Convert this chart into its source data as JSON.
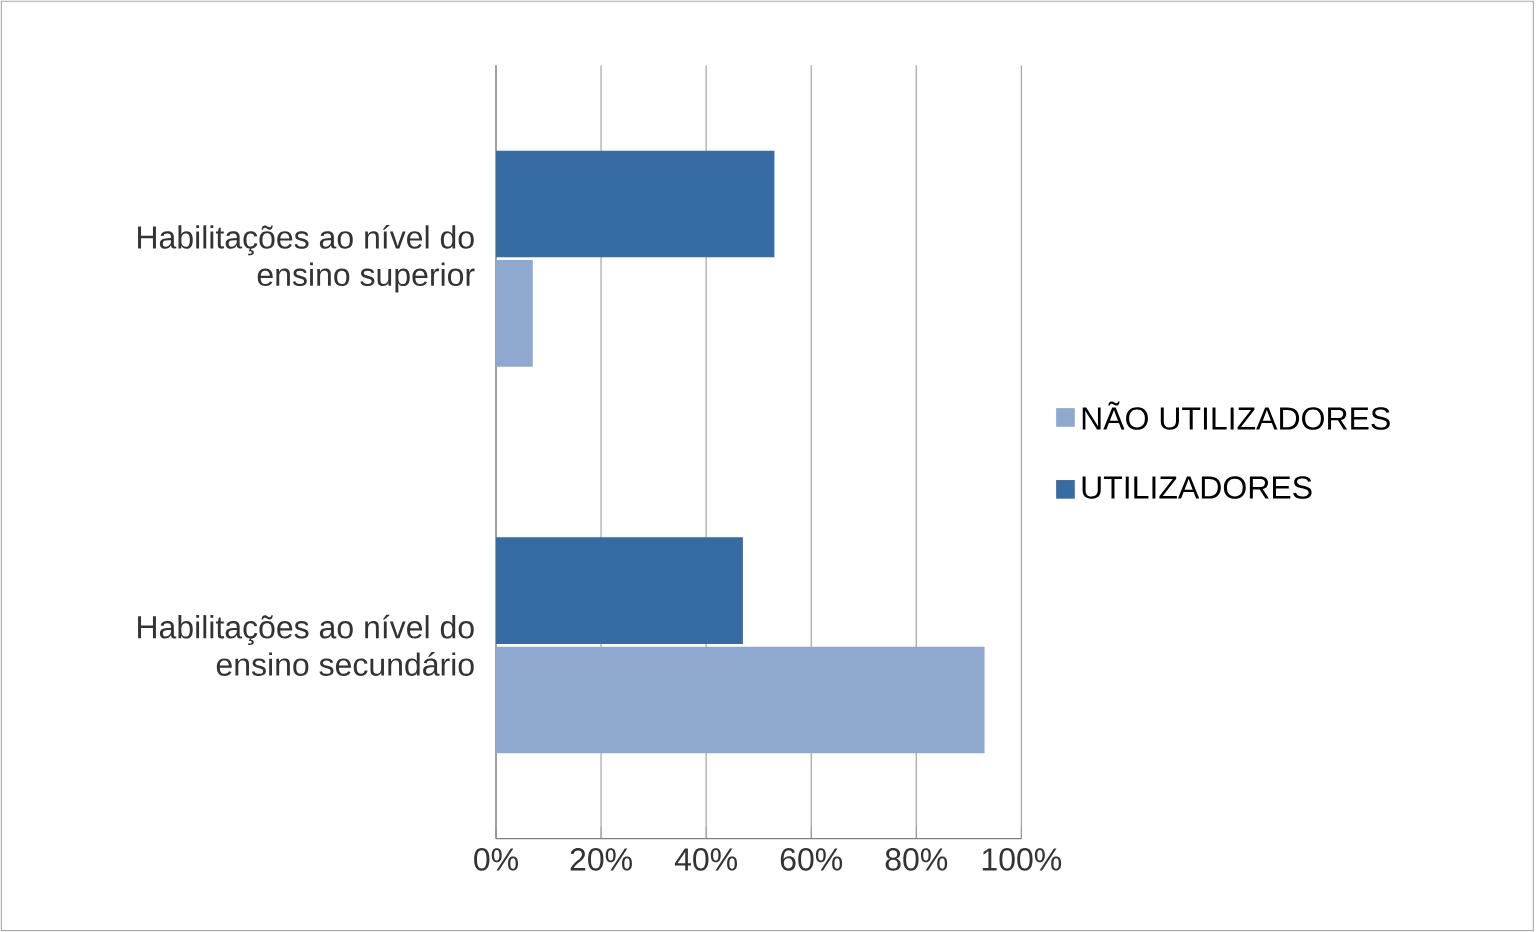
{
  "chart_data": {
    "type": "bar",
    "orientation": "horizontal",
    "categories": [
      "Habilitações ao nível do ensino superior",
      "Habilitações ao nível do ensino secundário"
    ],
    "series": [
      {
        "name": "NÃO UTILIZADORES",
        "color": "#8fa8cf",
        "values": [
          7,
          93
        ]
      },
      {
        "name": "UTILIZADORES",
        "color": "#376ba3",
        "values": [
          53,
          47
        ]
      }
    ],
    "xlim": [
      0,
      100
    ],
    "xticks": [
      {
        "value": 0,
        "label": "0%"
      },
      {
        "value": 20,
        "label": "20%"
      },
      {
        "value": 40,
        "label": "40%"
      },
      {
        "value": 60,
        "label": "60%"
      },
      {
        "value": 80,
        "label": "80%"
      },
      {
        "value": 100,
        "label": "100%"
      }
    ],
    "grid": "x",
    "legend": "right"
  }
}
